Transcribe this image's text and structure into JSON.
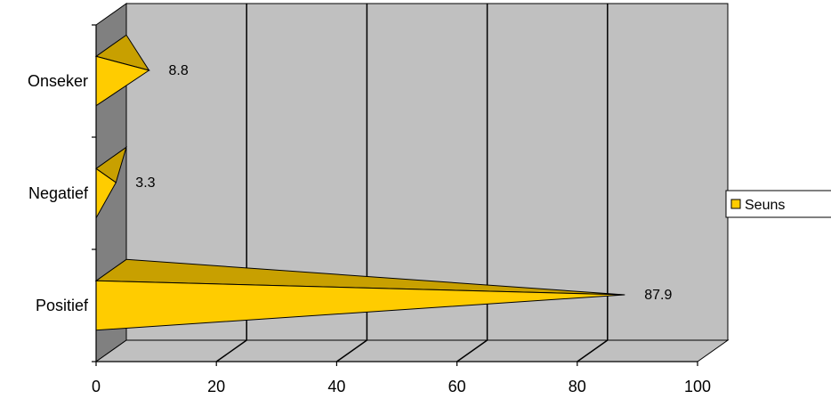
{
  "chart_data": {
    "type": "bar",
    "orientation": "horizontal",
    "style": "3d-cone",
    "categories": [
      "Positief",
      "Negatief",
      "Onseker"
    ],
    "series": [
      {
        "name": "Seuns",
        "values": [
          87.9,
          3.3,
          8.8
        ],
        "labels": [
          "87.9",
          "3.3",
          "8.8"
        ]
      }
    ],
    "xlim": [
      0,
      100
    ],
    "x_ticks": [
      "0",
      "20",
      "40",
      "60",
      "80",
      "100"
    ],
    "grid": true,
    "legend_position": "right",
    "colors": {
      "bar_front": "#FFCC00",
      "bar_top": "#C8A000",
      "wall": "#C0C0C0",
      "floor": "#C0C0C0",
      "side_wall": "#808080"
    }
  }
}
